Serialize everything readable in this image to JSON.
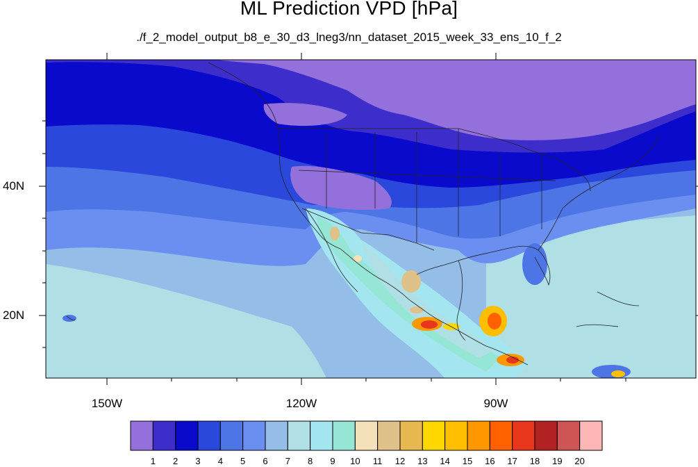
{
  "title": "ML Prediction VPD [hPa]",
  "subtitle": "./f_2_model_output_b8_e_30_d3_lneg3/nn_dataset_2015_week_33_ens_10_f_2",
  "map": {
    "lat_range": [
      11,
      59
    ],
    "lon_range": [
      -160,
      -60
    ],
    "lat_labels": [
      "40N",
      "20N"
    ],
    "lon_labels": [
      "150W",
      "120W",
      "90W"
    ],
    "lat_values": [
      40,
      20
    ],
    "lon_values": [
      -150,
      -120,
      -90
    ]
  },
  "colorbar": {
    "colors": [
      "#9370db",
      "#3d2ecc",
      "#0a0acd",
      "#2a48db",
      "#4d75e6",
      "#6b8ff0",
      "#94bde8",
      "#b0e0e6",
      "#a4e6f0",
      "#96e6d6",
      "#f5e1b9",
      "#dfc18a",
      "#e7b850",
      "#ffd700",
      "#ffbf00",
      "#ff9800",
      "#ff6000",
      "#e8361c",
      "#b22222",
      "#cd5555",
      "#ffb6b6"
    ],
    "labels": [
      "1",
      "2",
      "3",
      "4",
      "5",
      "6",
      "7",
      "8",
      "9",
      "10",
      "11",
      "12",
      "13",
      "14",
      "15",
      "16",
      "17",
      "18",
      "19",
      "20"
    ]
  }
}
